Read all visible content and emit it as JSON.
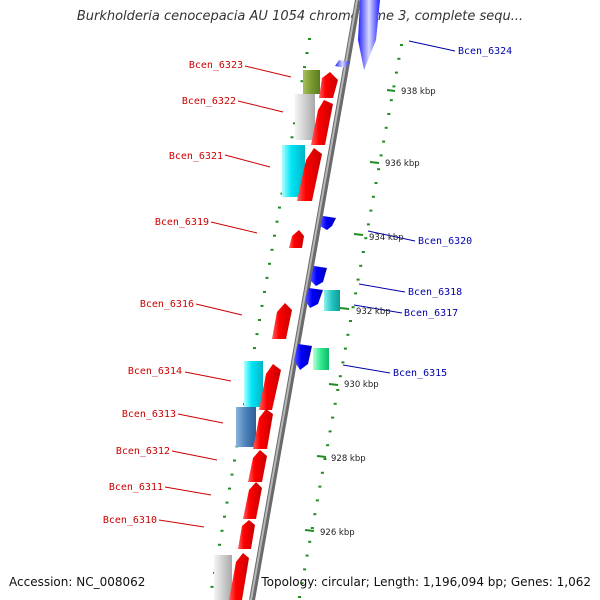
{
  "title": "Burkholderia cenocepacia AU 1054 chromosome 3, complete sequ...",
  "footer": {
    "accession": "Accession: NC_008062",
    "summary": "Topology: circular; Length: 1,196,094 bp; Genes: 1,062"
  },
  "colors": {
    "forward_gene": "#ff0000",
    "reverse_gene": "#0000ff",
    "forward_label": "#cc0000",
    "reverse_label": "#0000aa",
    "tick": "#228b22"
  },
  "scale_labels": [
    "926 kbp",
    "928 kbp",
    "930 kbp",
    "932 kbp",
    "934 kbp",
    "936 kbp",
    "938 kbp"
  ],
  "forward_gene_labels": [
    "Bcen_6323",
    "Bcen_6322",
    "Bcen_6321",
    "Bcen_6319",
    "Bcen_6316",
    "Bcen_6314",
    "Bcen_6313",
    "Bcen_6312",
    "Bcen_6311",
    "Bcen_6310"
  ],
  "reverse_gene_labels": [
    "Bcen_6324",
    "Bcen_6320",
    "Bcen_6318",
    "Bcen_6317",
    "Bcen_6315"
  ]
}
